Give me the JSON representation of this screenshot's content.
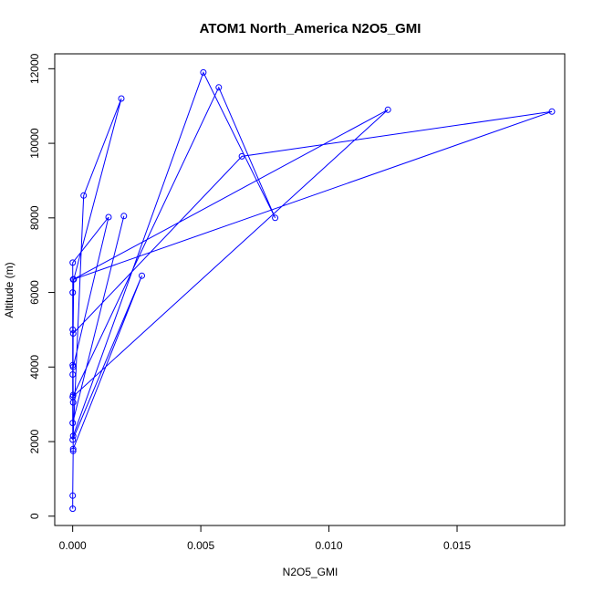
{
  "chart_data": {
    "type": "line",
    "title": "ATOM1 North_America N2O5_GMI",
    "xlabel": "N2O5_GMI",
    "ylabel": "Altitude (m)",
    "xlim": [
      -0.0007,
      0.0192
    ],
    "ylim": [
      -250,
      12400
    ],
    "x_ticks": [
      0.0,
      0.005,
      0.01,
      0.015
    ],
    "x_tick_labels": [
      "0.000",
      "0.005",
      "0.010",
      "0.015"
    ],
    "y_ticks": [
      0,
      2000,
      4000,
      6000,
      8000,
      10000,
      12000
    ],
    "y_tick_labels": [
      "0",
      "2000",
      "4000",
      "6000",
      "8000",
      "10000",
      "12000"
    ],
    "grid": false,
    "legend": "none",
    "series_color": "#0000ff",
    "markers": "open-circle",
    "series": [
      {
        "x": [
          0.0,
          0.0,
          2e-05,
          2e-05,
          0.0,
          4e-05,
          0.0019,
          0.00043,
          2e-05,
          0.0051,
          0.0079,
          0.0057,
          0.0,
          0.0123,
          2e-05,
          0.0187,
          0.0066,
          2e-05,
          0.0,
          0.0027,
          2e-05,
          2e-05,
          0.0,
          0.0014,
          2e-05,
          0.0,
          0.0,
          2e-05,
          0.0,
          0.0,
          0.002
        ],
        "y": [
          200,
          550,
          1750,
          3050,
          4050,
          6350,
          11200,
          8600,
          2150,
          11900,
          8000,
          11500,
          3200,
          10900,
          6350,
          10850,
          9650,
          4900,
          2050,
          6450,
          1800,
          3250,
          6800,
          8020,
          4000,
          5000,
          3800,
          6350,
          6000,
          2500,
          8050
        ]
      }
    ]
  }
}
